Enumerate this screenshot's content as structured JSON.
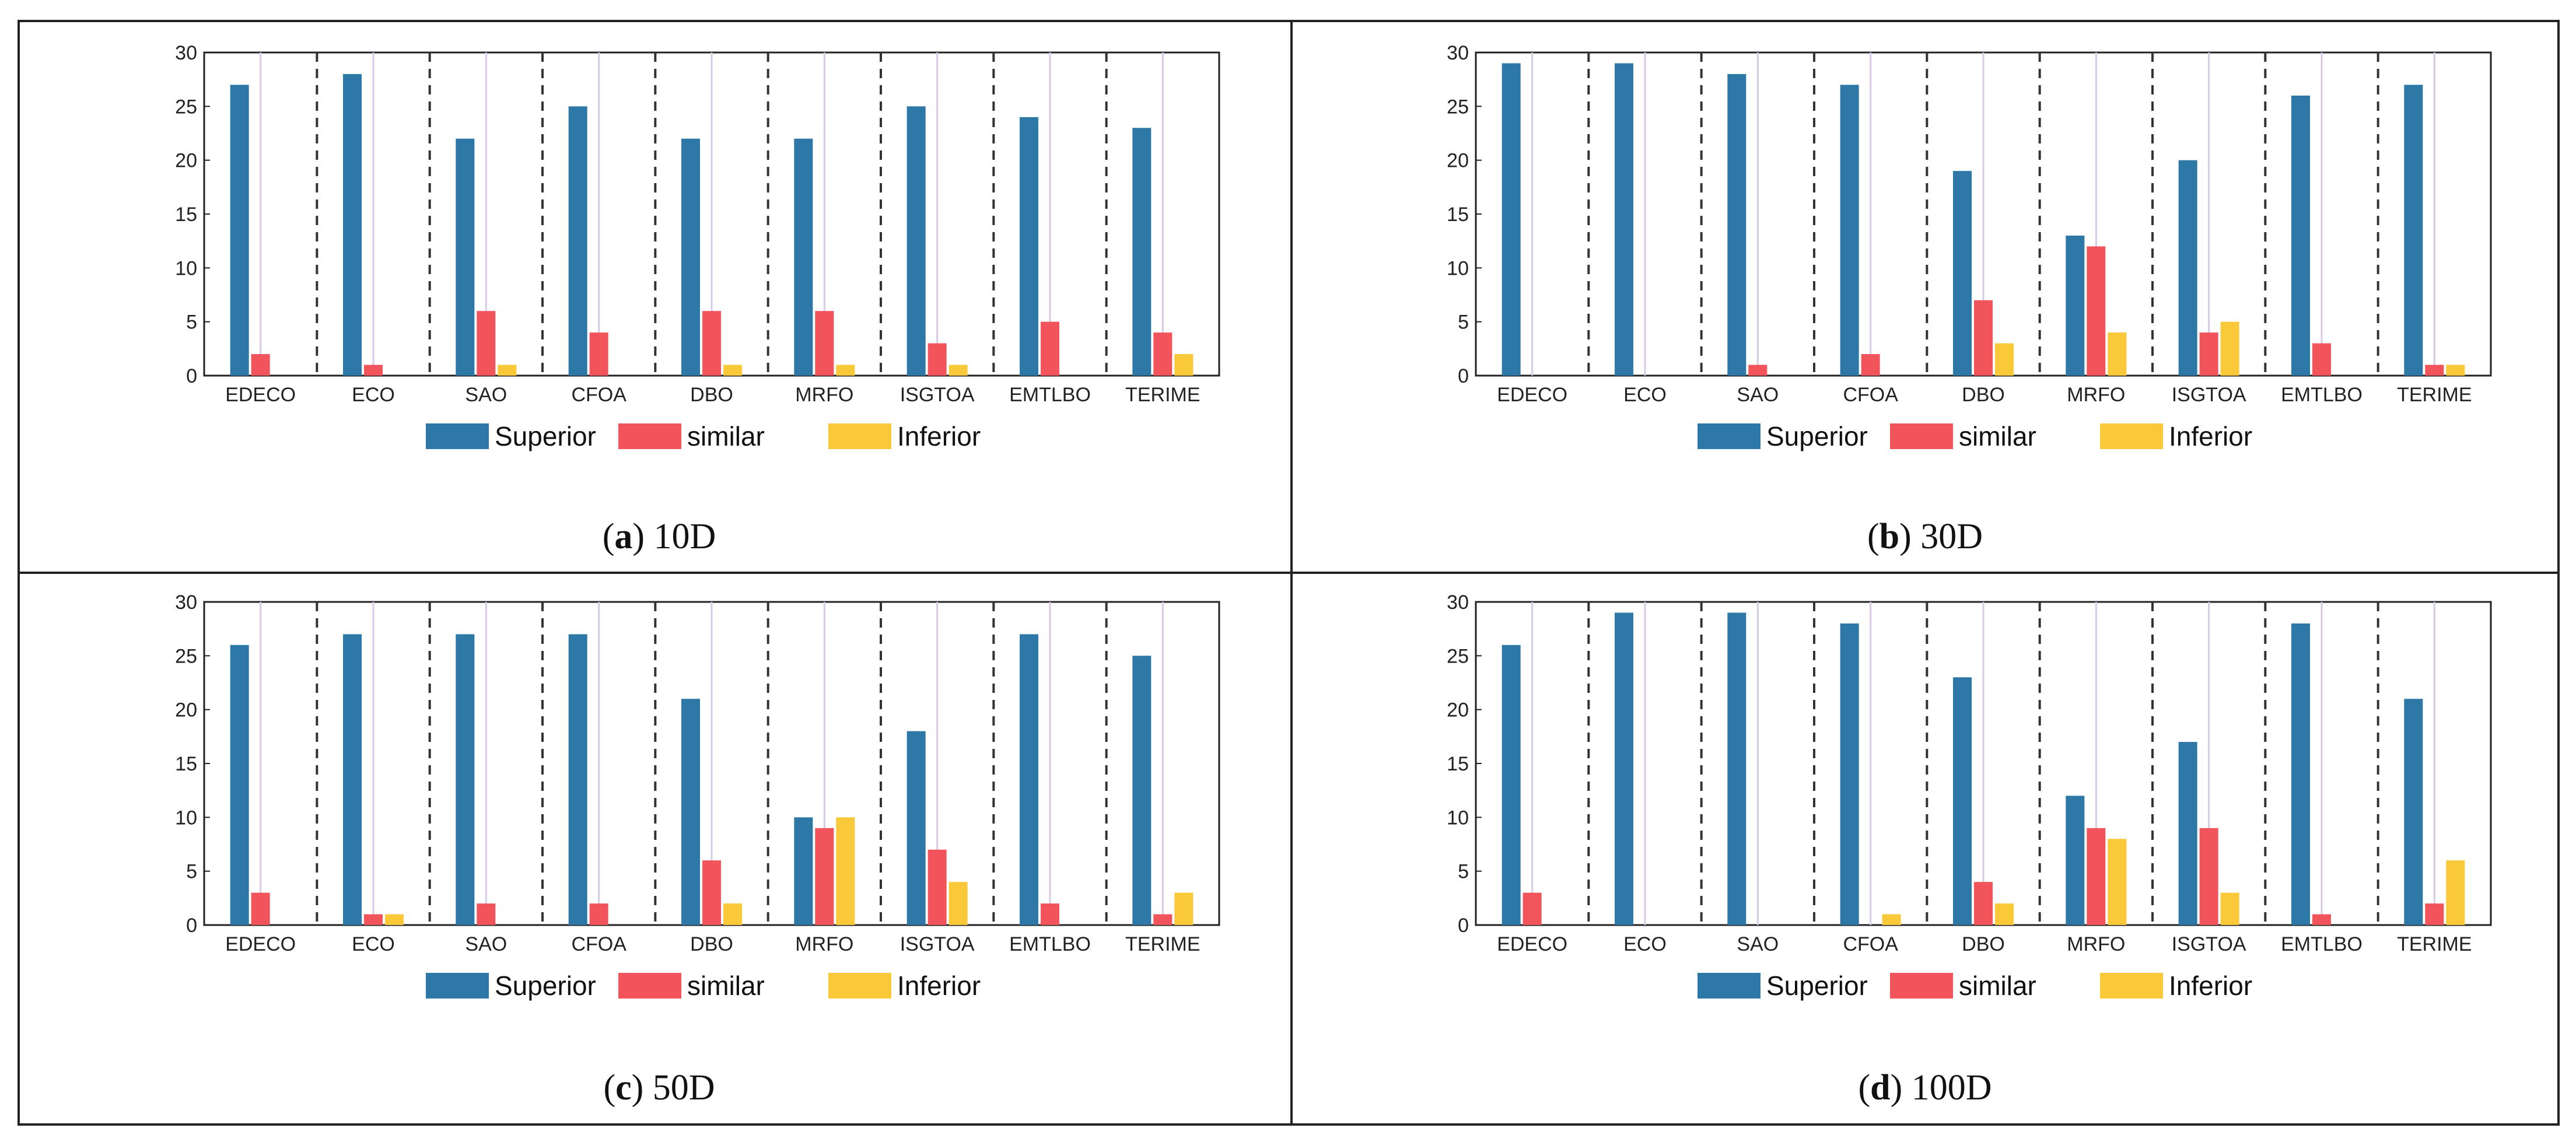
{
  "chart_data": [
    {
      "type": "bar",
      "id": "a",
      "caption_letter": "a",
      "caption_text": "10D",
      "categories": [
        "EDECO",
        "ECO",
        "SAO",
        "CFOA",
        "DBO",
        "MRFO",
        "ISGTOA",
        "EMTLBO",
        "TERIME"
      ],
      "series": [
        {
          "name": "Superior",
          "values": [
            27,
            28,
            22,
            25,
            22,
            22,
            25,
            24,
            23
          ]
        },
        {
          "name": "similar",
          "values": [
            2,
            1,
            6,
            4,
            6,
            6,
            3,
            5,
            4
          ]
        },
        {
          "name": "Inferior",
          "values": [
            0,
            0,
            1,
            0,
            1,
            1,
            1,
            0,
            2
          ]
        }
      ],
      "ylim": [
        0,
        30
      ],
      "yticks": [
        "0",
        "5",
        "10",
        "15",
        "20",
        "25",
        "30"
      ],
      "legend_position": "bottom-center"
    },
    {
      "type": "bar",
      "id": "b",
      "caption_letter": "b",
      "caption_text": "30D",
      "categories": [
        "EDECO",
        "ECO",
        "SAO",
        "CFOA",
        "DBO",
        "MRFO",
        "ISGTOA",
        "EMTLBO",
        "TERIME"
      ],
      "series": [
        {
          "name": "Superior",
          "values": [
            29,
            29,
            28,
            27,
            19,
            13,
            20,
            26,
            27
          ]
        },
        {
          "name": "similar",
          "values": [
            0,
            0,
            1,
            2,
            7,
            12,
            4,
            3,
            1
          ]
        },
        {
          "name": "Inferior",
          "values": [
            0,
            0,
            0,
            0,
            3,
            4,
            5,
            0,
            1
          ]
        }
      ],
      "ylim": [
        0,
        30
      ],
      "yticks": [
        "0",
        "5",
        "10",
        "15",
        "20",
        "25",
        "30"
      ],
      "legend_position": "bottom-center"
    },
    {
      "type": "bar",
      "id": "c",
      "caption_letter": "c",
      "caption_text": "50D",
      "categories": [
        "EDECO",
        "ECO",
        "SAO",
        "CFOA",
        "DBO",
        "MRFO",
        "ISGTOA",
        "EMTLBO",
        "TERIME"
      ],
      "series": [
        {
          "name": "Superior",
          "values": [
            26,
            27,
            27,
            27,
            21,
            10,
            18,
            27,
            25
          ]
        },
        {
          "name": "similar",
          "values": [
            3,
            1,
            2,
            2,
            6,
            9,
            7,
            2,
            1
          ]
        },
        {
          "name": "Inferior",
          "values": [
            0,
            1,
            0,
            0,
            2,
            10,
            4,
            0,
            3
          ]
        }
      ],
      "ylim": [
        0,
        30
      ],
      "yticks": [
        "0",
        "5",
        "10",
        "15",
        "20",
        "25",
        "30"
      ],
      "legend_position": "bottom-center"
    },
    {
      "type": "bar",
      "id": "d",
      "caption_letter": "d",
      "caption_text": "100D",
      "categories": [
        "EDECO",
        "ECO",
        "SAO",
        "CFOA",
        "DBO",
        "MRFO",
        "ISGTOA",
        "EMTLBO",
        "TERIME"
      ],
      "series": [
        {
          "name": "Superior",
          "values": [
            26,
            29,
            29,
            28,
            23,
            12,
            17,
            28,
            21
          ]
        },
        {
          "name": "similar",
          "values": [
            3,
            0,
            0,
            0,
            4,
            9,
            9,
            1,
            2
          ]
        },
        {
          "name": "Inferior",
          "values": [
            0,
            0,
            0,
            1,
            2,
            8,
            3,
            0,
            6
          ]
        }
      ],
      "ylim": [
        0,
        30
      ],
      "yticks": [
        "0",
        "5",
        "10",
        "15",
        "20",
        "25",
        "30"
      ],
      "legend_position": "bottom-center"
    }
  ],
  "colors": {
    "Superior": "#2E78A8",
    "similar": "#F2545B",
    "Inferior": "#F9C93A",
    "guide_line": "#D9C9E8",
    "separator": "#333333",
    "axis": "#222222"
  }
}
